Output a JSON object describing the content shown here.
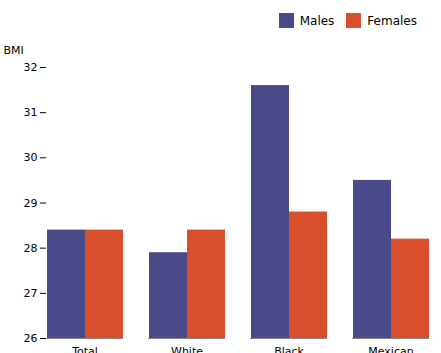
{
  "chart_data": {
    "type": "bar",
    "categories": [
      "Total",
      "White",
      "Black",
      "Mexican"
    ],
    "series": [
      {
        "name": "Males",
        "color": "#4a4a8a",
        "values": [
          28.4,
          27.9,
          31.6,
          29.5
        ]
      },
      {
        "name": "Females",
        "color": "#d94f2b",
        "values": [
          28.4,
          28.4,
          28.8,
          28.2
        ]
      }
    ],
    "ylabel": "BMI",
    "ylim": [
      26,
      32
    ],
    "yticks": [
      26,
      27,
      28,
      29,
      30,
      31,
      32
    ],
    "grid": false,
    "legend": "upper right"
  }
}
